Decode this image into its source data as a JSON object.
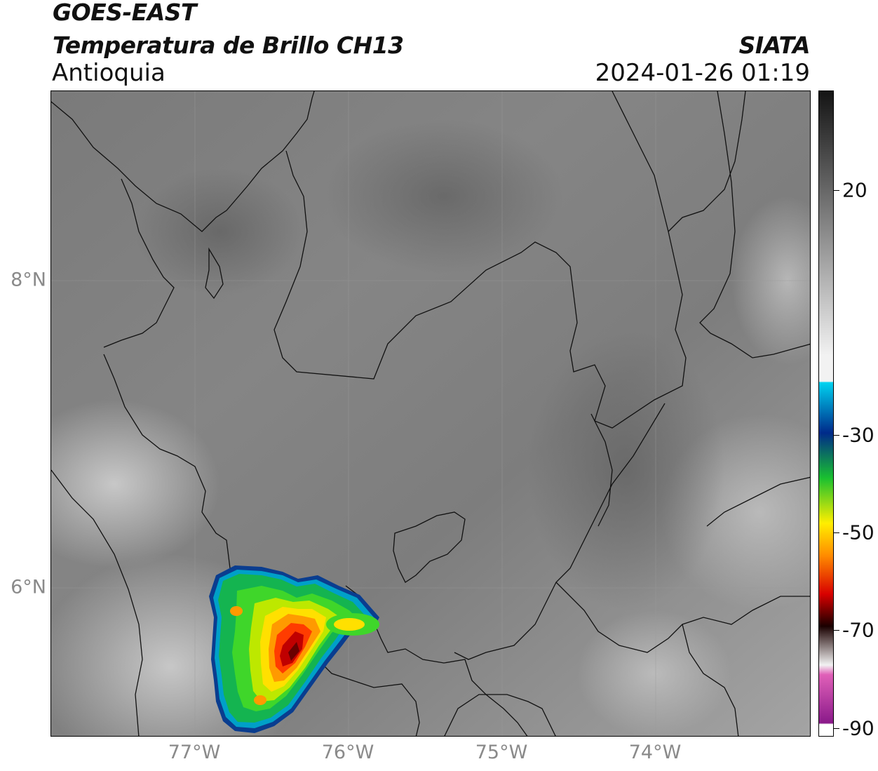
{
  "header": {
    "line1": "GOES-EAST",
    "line2": "Temperatura de Brillo CH13",
    "brand": "SIATA",
    "region": "Antioquia",
    "timestamp": "2024-01-26 01:19"
  },
  "map": {
    "longitude_labels": [
      "77°W",
      "76°W",
      "75°W",
      "74°W"
    ],
    "latitude_labels": [
      "8°N",
      "6°N"
    ],
    "storm_color_scale": [
      "#0a3d8f",
      "#00a0c8",
      "#14b450",
      "#3fd62a",
      "#bde800",
      "#ffe000",
      "#ff9a00",
      "#ff3c00",
      "#c00000",
      "#6a0000"
    ]
  },
  "colorbar": {
    "tick_labels": [
      "20",
      "-30",
      "-50",
      "-70",
      "-90"
    ],
    "colors": {
      "gray_dark": "#141414",
      "gray_light": "#f2f2f2",
      "cyan": "#00d2f0",
      "blue": "#002a8a",
      "green": "#19c030",
      "yellow": "#ffee00",
      "orange": "#ff8c00",
      "red": "#d80000",
      "black": "#1a0000",
      "pink": "#e060b8",
      "purple": "#8a1a8a",
      "white": "#ffffff"
    }
  }
}
